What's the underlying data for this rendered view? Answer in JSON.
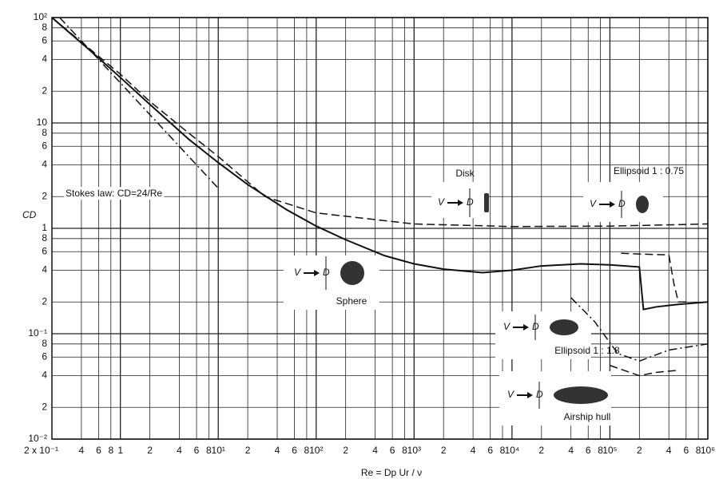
{
  "chart_data": {
    "type": "line",
    "log_x": true,
    "log_y": true,
    "grid": true,
    "xlabel": "Re = Dp Ur / ν",
    "ylabel": "CD",
    "xlim": [
      0.2,
      1000000
    ],
    "ylim": [
      0.01,
      100
    ],
    "xticks": [
      {
        "value": 0.2,
        "label": "2 x 10⁻¹"
      },
      {
        "value": 0.4,
        "label": "4"
      },
      {
        "value": 0.6,
        "label": "6"
      },
      {
        "value": 0.8,
        "label": "8"
      },
      1,
      2,
      4,
      6,
      8,
      {
        "value": 10,
        "label": "10¹"
      },
      {
        "value": 20,
        "label": "2"
      },
      {
        "value": 40,
        "label": "4"
      },
      {
        "value": 60,
        "label": "6"
      },
      {
        "value": 80,
        "label": "8"
      },
      {
        "value": 100,
        "label": "10²"
      },
      {
        "value": 200,
        "label": "2"
      },
      {
        "value": 400,
        "label": "4"
      },
      {
        "value": 600,
        "label": "6"
      },
      {
        "value": 800,
        "label": "8"
      },
      {
        "value": 1000,
        "label": "10³"
      },
      {
        "value": 2000,
        "label": "2"
      },
      {
        "value": 4000,
        "label": "4"
      },
      {
        "value": 6000,
        "label": "6"
      },
      {
        "value": 8000,
        "label": "8"
      },
      {
        "value": 10000,
        "label": "10⁴"
      },
      {
        "value": 20000,
        "label": "2"
      },
      {
        "value": 40000,
        "label": "4"
      },
      {
        "value": 60000,
        "label": "6"
      },
      {
        "value": 80000,
        "label": "8"
      },
      {
        "value": 100000,
        "label": "10⁵"
      },
      {
        "value": 200000,
        "label": "2"
      },
      {
        "value": 400000,
        "label": "4"
      },
      {
        "value": 600000,
        "label": "6"
      },
      {
        "value": 800000,
        "label": "8"
      },
      {
        "value": 1000000,
        "label": "10⁶"
      }
    ],
    "yticks": [
      {
        "value": 0.01,
        "label": "10⁻²"
      },
      {
        "value": 0.02,
        "label": "2"
      },
      {
        "value": 0.04,
        "label": "4"
      },
      {
        "value": 0.06,
        "label": "6"
      },
      {
        "value": 0.08,
        "label": "8"
      },
      {
        "value": 0.1,
        "label": "10⁻¹"
      },
      {
        "value": 0.2,
        "label": "2"
      },
      {
        "value": 0.4,
        "label": "4"
      },
      {
        "value": 0.6,
        "label": "6"
      },
      {
        "value": 0.8,
        "label": "8"
      },
      1,
      2,
      4,
      6,
      8,
      10,
      {
        "value": 20,
        "label": "2"
      },
      {
        "value": 40,
        "label": "4"
      },
      {
        "value": 60,
        "label": "6"
      },
      {
        "value": 80,
        "label": "8"
      },
      {
        "value": 100,
        "label": "10²"
      }
    ],
    "flow_symbol": "V",
    "diameter_symbol": "D",
    "series": [
      {
        "name": "Sphere",
        "color": "#111111",
        "style": "solid",
        "x": [
          0.2,
          0.5,
          1,
          2,
          5,
          10,
          20,
          50,
          100,
          200,
          500,
          1000,
          2000,
          5000,
          10000,
          20000,
          50000,
          100000,
          200000,
          220000,
          300000,
          500000,
          1000000
        ],
        "values": [
          100,
          48,
          27,
          15,
          7,
          4.2,
          2.6,
          1.5,
          1.05,
          0.78,
          0.55,
          0.46,
          0.41,
          0.38,
          0.4,
          0.44,
          0.46,
          0.45,
          0.43,
          0.17,
          0.18,
          0.19,
          0.2
        ]
      },
      {
        "name": "Disk",
        "color": "#111111",
        "style": "dashed",
        "x": [
          0.2,
          1,
          2,
          5,
          10,
          30,
          100,
          1000,
          10000,
          100000,
          1000000
        ],
        "values": [
          100,
          29,
          16,
          8,
          4.8,
          2,
          1.4,
          1.1,
          1.04,
          1.05,
          1.1
        ]
      },
      {
        "name": "Stokes law: CD=24/Re",
        "color": "#111111",
        "style": "dashdot",
        "x": [
          0.24,
          1,
          10
        ],
        "values": [
          100,
          24,
          2.4
        ]
      },
      {
        "name": "Ellipsoid 1 : 0.75",
        "color": "#111111",
        "style": "dashed",
        "x": [
          130000,
          200000,
          400000,
          450000,
          500000,
          600000
        ],
        "values": [
          0.58,
          0.57,
          0.56,
          0.3,
          0.2,
          0.2
        ]
      },
      {
        "name": "Ellipsoid 1 : 1.8",
        "color": "#111111",
        "style": "dashdot",
        "x": [
          40000,
          70000,
          120000,
          200000,
          400000,
          1000000
        ],
        "values": [
          0.22,
          0.13,
          0.065,
          0.055,
          0.07,
          0.08
        ]
      },
      {
        "name": "Airship hull",
        "color": "#111111",
        "style": "dashed",
        "x": [
          100000,
          200000,
          300000,
          500000
        ],
        "values": [
          0.05,
          0.04,
          0.043,
          0.045
        ]
      }
    ]
  }
}
